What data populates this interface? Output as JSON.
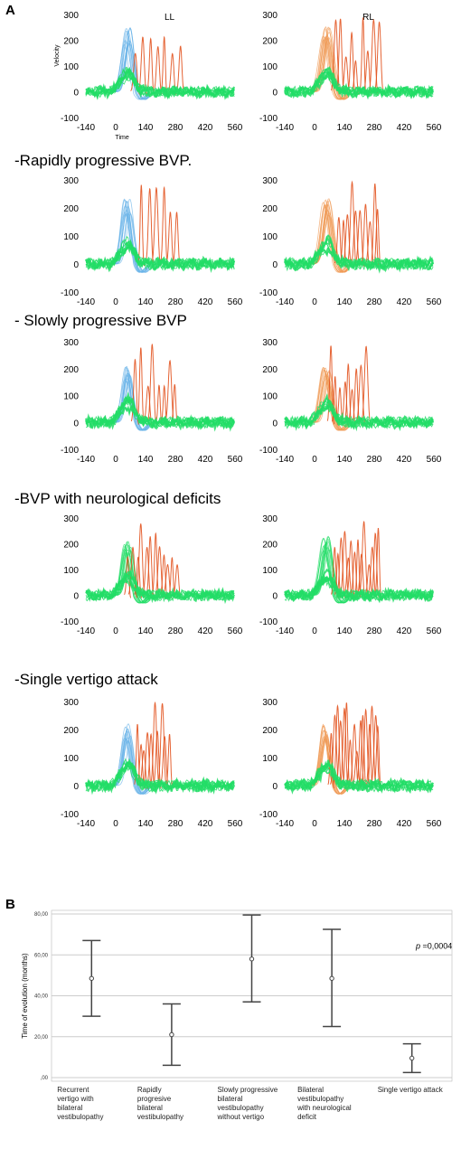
{
  "panel_a_label": "A",
  "panel_b_label": "B",
  "chart_data": [
    {
      "type": "line",
      "panel": "A",
      "section": "",
      "plots": [
        {
          "label": "LL",
          "xlabel": "Time",
          "ylabel": "Velocity",
          "x_ticks": [
            "-140",
            "0",
            "140",
            "280",
            "420",
            "560"
          ],
          "y_ticks": [
            "-100",
            "0",
            "100",
            "200",
            "300"
          ],
          "xlim": [
            -140,
            560
          ],
          "ylim": [
            -100,
            300
          ],
          "head": "blue",
          "peak": 240,
          "saccade_count": 7,
          "saccade_range": [
            95,
            300
          ],
          "grid": false
        },
        {
          "label": "RL",
          "xlabel": "",
          "ylabel": "",
          "x_ticks": [
            "-140",
            "0",
            "140",
            "280",
            "420",
            "560"
          ],
          "y_ticks": [
            "-100",
            "0",
            "100",
            "200",
            "300"
          ],
          "xlim": [
            -140,
            560
          ],
          "ylim": [
            -100,
            300
          ],
          "head": "orange",
          "peak": 240,
          "saccade_count": 9,
          "saccade_range": [
            95,
            300
          ],
          "grid": false
        }
      ]
    },
    {
      "type": "line",
      "panel": "A",
      "section": "-Rapidly progressive BVP.",
      "plots": [
        {
          "label": "",
          "x_ticks": [
            "-140",
            "0",
            "140",
            "280",
            "420",
            "560"
          ],
          "y_ticks": [
            "-100",
            "0",
            "100",
            "200",
            "300"
          ],
          "xlim": [
            -140,
            560
          ],
          "ylim": [
            -100,
            300
          ],
          "head": "blue",
          "peak": 230,
          "saccade_count": 6,
          "saccade_range": [
            125,
            290
          ],
          "grid": false
        },
        {
          "label": "",
          "x_ticks": [
            "-140",
            "0",
            "140",
            "280",
            "420",
            "560"
          ],
          "y_ticks": [
            "-100",
            "0",
            "100",
            "200",
            "300"
          ],
          "xlim": [
            -140,
            560
          ],
          "ylim": [
            -100,
            300
          ],
          "head": "orange",
          "peak": 230,
          "saccade_count": 10,
          "saccade_range": [
            110,
            300
          ],
          "grid": false
        }
      ]
    },
    {
      "type": "line",
      "panel": "A",
      "section": "- Slowly progressive BVP",
      "plots": [
        {
          "label": "",
          "x_ticks": [
            "-140",
            "0",
            "140",
            "280",
            "420",
            "560"
          ],
          "y_ticks": [
            "-100",
            "0",
            "100",
            "200",
            "300"
          ],
          "xlim": [
            -140,
            560
          ],
          "ylim": [
            -100,
            300
          ],
          "head": "blue",
          "peak": 200,
          "saccade_count": 8,
          "saccade_range": [
            95,
            280
          ],
          "grid": false
        },
        {
          "label": "",
          "x_ticks": [
            "-140",
            "0",
            "140",
            "280",
            "420",
            "560"
          ],
          "y_ticks": [
            "-100",
            "0",
            "100",
            "200",
            "300"
          ],
          "xlim": [
            -140,
            560
          ],
          "ylim": [
            -100,
            300
          ],
          "head": "orange",
          "peak": 200,
          "saccade_count": 9,
          "saccade_range": [
            80,
            240
          ],
          "grid": false
        }
      ]
    },
    {
      "type": "line",
      "panel": "A",
      "section": "-BVP with neurological deficits",
      "plots": [
        {
          "label": "",
          "x_ticks": [
            "-140",
            "0",
            "140",
            "280",
            "420",
            "560"
          ],
          "y_ticks": [
            "-100",
            "0",
            "100",
            "200",
            "300"
          ],
          "xlim": [
            -140,
            560
          ],
          "ylim": [
            -100,
            300
          ],
          "head": "green",
          "peak": 220,
          "saccade_count": 12,
          "saccade_range": [
            60,
            290
          ],
          "grid": false
        },
        {
          "label": "",
          "x_ticks": [
            "-140",
            "0",
            "140",
            "280",
            "420",
            "560"
          ],
          "y_ticks": [
            "-100",
            "0",
            "100",
            "200",
            "300"
          ],
          "xlim": [
            -140,
            560
          ],
          "ylim": [
            -100,
            300
          ],
          "head": "green",
          "peak": 220,
          "saccade_count": 14,
          "saccade_range": [
            90,
            300
          ],
          "grid": false
        }
      ]
    },
    {
      "type": "line",
      "panel": "A",
      "section": "-Single vertigo attack",
      "plots": [
        {
          "label": "",
          "x_ticks": [
            "-140",
            "0",
            "140",
            "280",
            "420",
            "560"
          ],
          "y_ticks": [
            "-100",
            "0",
            "100",
            "200",
            "300"
          ],
          "xlim": [
            -140,
            560
          ],
          "ylim": [
            -100,
            300
          ],
          "head": "blue",
          "peak": 210,
          "saccade_count": 10,
          "saccade_range": [
            100,
            250
          ],
          "grid": false
        },
        {
          "label": "",
          "x_ticks": [
            "-140",
            "0",
            "140",
            "280",
            "420",
            "560"
          ],
          "y_ticks": [
            "-100",
            "0",
            "100",
            "200",
            "300"
          ],
          "xlim": [
            -140,
            560
          ],
          "ylim": [
            -100,
            300
          ],
          "head": "orange",
          "peak": 210,
          "saccade_count": 16,
          "saccade_range": [
            80,
            300
          ],
          "grid": false
        }
      ]
    },
    {
      "type": "scatter",
      "panel": "B",
      "title": "",
      "ylabel": "Time of evolution (months)",
      "ylim": [
        0,
        80
      ],
      "y_ticks": [
        ",00",
        "20,00",
        "40,00",
        "60,00",
        "80,00"
      ],
      "y_tick_values": [
        0,
        20,
        40,
        60,
        80
      ],
      "grid": true,
      "annotation": {
        "italic": "p",
        "text": " =0,0004"
      },
      "categories": [
        [
          "Recurrent",
          "vertigo with",
          "bilateral",
          "vestibulopathy"
        ],
        [
          "Rapidly",
          "progresive",
          "bilateral",
          "vestibulopathy"
        ],
        [
          "Slowly progressive",
          "bilateral",
          "vestibulopathy",
          "without vertigo"
        ],
        [
          "Bilateral",
          "vestibulopathy",
          "with neurological",
          "deficit"
        ],
        [
          "Single vertigo attack"
        ]
      ],
      "points": [
        {
          "mean": 48.5,
          "low": 30,
          "high": 67
        },
        {
          "mean": 21,
          "low": 6,
          "high": 36
        },
        {
          "mean": 58,
          "low": 37,
          "high": 79.5
        },
        {
          "mean": 48.5,
          "low": 25,
          "high": 72.5
        },
        {
          "mean": 9.5,
          "low": 2.5,
          "high": 16.5
        }
      ]
    }
  ],
  "colors": {
    "green": "#22dd66",
    "blue": "#6ab4e8",
    "orange": "#ef9a55",
    "red": "#e2521e",
    "errorbar": "#444444",
    "grid": "#cccccc"
  }
}
